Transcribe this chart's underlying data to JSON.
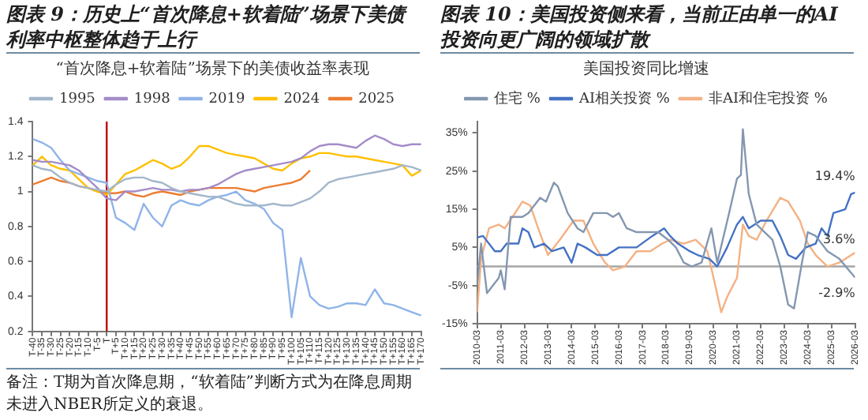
{
  "chart_data": [
    {
      "type": "line",
      "title": "图表 9：历史上“首次降息+软着陆”场景下美债利率中枢整体趋于上行",
      "subtitle": "“首次降息+软着陆”场景下的美债收益率表现",
      "legend": "top",
      "marker": "none",
      "line_style": "solid",
      "grid": false,
      "categories": [
        "T-40",
        "T-35",
        "T-30",
        "T-25",
        "T-20",
        "T-15",
        "T-10",
        "T-5",
        "T",
        "T+5",
        "T+10",
        "T+15",
        "T+20",
        "T+25",
        "T+30",
        "T+35",
        "T+40",
        "T+45",
        "T+50",
        "T+55",
        "T+60",
        "T+65",
        "T+70",
        "T+75",
        "T+80",
        "T+85",
        "T+90",
        "T+95",
        "T+100",
        "T+105",
        "T+110",
        "T+115",
        "T+120",
        "T+125",
        "T+130",
        "T+135",
        "T+140",
        "T+145",
        "T+150",
        "T+155",
        "T+160",
        "T+165",
        "T+170"
      ],
      "ylim": [
        0.2,
        1.4
      ],
      "yticks": [
        0.2,
        0.4,
        0.6,
        0.8,
        1,
        1.2,
        1.4
      ],
      "ref_lines": [
        {
          "axis": "x",
          "value": "T",
          "color": "#c00000"
        }
      ],
      "series": [
        {
          "name": "1995",
          "color": "#a3b7cb",
          "values": [
            1.15,
            1.13,
            1.12,
            1.08,
            1.05,
            1.03,
            1.02,
            1.01,
            1.0,
            1.04,
            1.07,
            1.08,
            1.08,
            1.06,
            1.05,
            1.02,
            1.0,
            0.99,
            0.98,
            0.97,
            0.97,
            0.95,
            0.93,
            0.92,
            0.92,
            0.92,
            0.93,
            0.92,
            0.92,
            0.94,
            0.96,
            1.0,
            1.05,
            1.07,
            1.08,
            1.09,
            1.1,
            1.11,
            1.12,
            1.13,
            1.15,
            1.14,
            1.12
          ]
        },
        {
          "name": "1998",
          "color": "#a48cc8",
          "values": [
            1.18,
            1.17,
            1.17,
            1.16,
            1.15,
            1.12,
            1.07,
            1.02,
            0.96,
            0.95,
            1.0,
            1.0,
            1.01,
            1.02,
            1.01,
            1.01,
            1.0,
            1.01,
            1.01,
            1.02,
            1.04,
            1.07,
            1.1,
            1.12,
            1.13,
            1.14,
            1.15,
            1.16,
            1.17,
            1.19,
            1.23,
            1.26,
            1.27,
            1.27,
            1.26,
            1.25,
            1.29,
            1.32,
            1.3,
            1.27,
            1.26,
            1.27,
            1.27
          ]
        },
        {
          "name": "2019",
          "color": "#8fb4e8",
          "values": [
            1.3,
            1.28,
            1.25,
            1.18,
            1.12,
            1.1,
            1.08,
            1.06,
            1.05,
            0.85,
            0.82,
            0.78,
            0.93,
            0.85,
            0.8,
            0.92,
            0.95,
            0.93,
            0.92,
            0.95,
            0.97,
            0.98,
            1.0,
            0.95,
            0.93,
            0.9,
            0.82,
            0.78,
            0.28,
            0.62,
            0.4,
            0.35,
            0.33,
            0.34,
            0.36,
            0.36,
            0.35,
            0.44,
            0.36,
            0.35,
            0.33,
            0.31,
            0.29
          ]
        },
        {
          "name": "2024",
          "color": "#ffc000",
          "values": [
            1.15,
            1.2,
            1.15,
            1.13,
            1.12,
            1.07,
            1.02,
            1.0,
            0.98,
            1.04,
            1.1,
            1.12,
            1.15,
            1.18,
            1.16,
            1.13,
            1.15,
            1.2,
            1.26,
            1.26,
            1.24,
            1.22,
            1.21,
            1.2,
            1.19,
            1.16,
            1.13,
            1.12,
            1.16,
            1.19,
            1.2,
            1.22,
            1.22,
            1.21,
            1.2,
            1.2,
            1.19,
            1.18,
            1.17,
            1.16,
            1.15,
            1.09,
            1.12
          ]
        },
        {
          "name": "2025",
          "color": "#ed7d31",
          "values": [
            1.04,
            1.06,
            1.08,
            1.06,
            1.05,
            1.03,
            1.02,
            1.0,
            0.99,
            0.99,
            1.0,
            0.98,
            0.97,
            0.99,
            1.0,
            0.99,
            0.98,
            1.0,
            1.01,
            1.02,
            1.02,
            1.02,
            1.02,
            1.01,
            1.0,
            1.02,
            1.03,
            1.04,
            1.05,
            1.07,
            1.12,
            null,
            null,
            null,
            null,
            null,
            null,
            null,
            null,
            null,
            null,
            null,
            null
          ]
        }
      ],
      "annotations": [
        "备注：T期为首次降息期，“软着陆”判断方式为在降息周期未进入NBER所定义的衰退。"
      ]
    },
    {
      "type": "line",
      "title": "图表 10：美国投资侧来看，当前正由单一的AI投资向更广阔的领域扩散",
      "subtitle": "美国投资同比增速",
      "legend": "top",
      "marker": "none",
      "line_style": "solid",
      "grid": false,
      "xlim": [
        "2010-03",
        "2026-03"
      ],
      "xticks": [
        "2010-03",
        "2011-03",
        "2012-03",
        "2013-03",
        "2014-03",
        "2015-03",
        "2016-03",
        "2017-03",
        "2018-03",
        "2019-03",
        "2020-03",
        "2021-03",
        "2022-03",
        "2023-03",
        "2024-03",
        "2025-03",
        "2026-03"
      ],
      "ylim": [
        -15,
        38
      ],
      "yticks": [
        {
          "value": -15,
          "label": "-15%"
        },
        {
          "value": -5,
          "label": "-5%"
        },
        {
          "value": 5,
          "label": "5%"
        },
        {
          "value": 15,
          "label": "15%"
        },
        {
          "value": 25,
          "label": "25%"
        },
        {
          "value": 35,
          "label": "35%"
        }
      ],
      "ref_lines": [
        {
          "axis": "y",
          "value": 0,
          "color": "#a6a6a6"
        }
      ],
      "series": [
        {
          "name": "住宅 %",
          "color": "#8497b0",
          "x": [
            "2010-03",
            "2010-05",
            "2010-08",
            "2011-02",
            "2011-03",
            "2011-05",
            "2011-08",
            "2012-02",
            "2012-05",
            "2012-11",
            "2013-02",
            "2013-06",
            "2013-08",
            "2014-01",
            "2014-06",
            "2014-09",
            "2015-02",
            "2015-07",
            "2015-09",
            "2015-12",
            "2016-03",
            "2016-07",
            "2016-12",
            "2017-11",
            "2018-04",
            "2018-08",
            "2018-12",
            "2019-04",
            "2019-09",
            "2020-02",
            "2020-05",
            "2020-11",
            "2021-03",
            "2021-05",
            "2021-06",
            "2021-09",
            "2022-01",
            "2022-09",
            "2023-01",
            "2023-05",
            "2023-08",
            "2023-12",
            "2024-03",
            "2024-07",
            "2025-01",
            "2025-07",
            "2026-03"
          ],
          "values": [
            -5,
            6,
            -7,
            -3,
            -1,
            -6,
            13,
            13,
            14,
            18,
            17,
            22,
            21,
            14,
            10,
            9,
            14,
            14,
            14,
            13,
            14,
            10,
            9,
            9,
            7,
            5,
            1,
            0,
            1,
            10,
            1,
            14,
            23,
            24,
            36,
            19,
            11,
            7,
            0,
            -10,
            -11,
            1,
            9,
            8,
            4,
            2,
            -2.9
          ]
        },
        {
          "name": "AI相关投资 %",
          "color": "#4472c4",
          "x": [
            "2010-03",
            "2010-06",
            "2010-12",
            "2011-03",
            "2011-06",
            "2011-12",
            "2012-02",
            "2012-05",
            "2012-08",
            "2013-01",
            "2013-05",
            "2013-11",
            "2014-03",
            "2014-06",
            "2014-10",
            "2015-04",
            "2015-09",
            "2016-03",
            "2016-12",
            "2017-08",
            "2018-02",
            "2018-05",
            "2018-09",
            "2019-03",
            "2019-07",
            "2020-01",
            "2020-05",
            "2020-10",
            "2021-03",
            "2021-06",
            "2021-09",
            "2022-03",
            "2022-09",
            "2023-01",
            "2023-05",
            "2023-09",
            "2024-02",
            "2024-07",
            "2024-10",
            "2025-01",
            "2025-04",
            "2025-10",
            "2026-01",
            "2026-03"
          ],
          "values": [
            7.6,
            8,
            4,
            4,
            6,
            6,
            10,
            9,
            5,
            6,
            4,
            5,
            1,
            6,
            5,
            3,
            3,
            5,
            5,
            8,
            10,
            8,
            6,
            4,
            3,
            2,
            0,
            5,
            11,
            13,
            10,
            12,
            12,
            8,
            3,
            2,
            5,
            6,
            10,
            8,
            14,
            15,
            19,
            19.4
          ]
        },
        {
          "name": "非AI和住宅投资 %",
          "color": "#f4b183",
          "x": [
            "2010-03",
            "2010-05",
            "2010-09",
            "2011-02",
            "2011-05",
            "2011-09",
            "2012-02",
            "2012-06",
            "2012-10",
            "2013-03",
            "2013-09",
            "2014-04",
            "2014-09",
            "2015-02",
            "2015-08",
            "2015-12",
            "2016-06",
            "2016-12",
            "2017-07",
            "2018-01",
            "2018-05",
            "2018-12",
            "2019-06",
            "2019-12",
            "2020-04",
            "2020-07",
            "2020-10",
            "2021-03",
            "2021-06",
            "2021-09",
            "2022-01",
            "2022-06",
            "2023-01",
            "2023-05",
            "2023-11",
            "2024-03",
            "2024-07",
            "2025-01",
            "2025-07",
            "2026-03"
          ],
          "values": [
            -12,
            2,
            10,
            11,
            10,
            13,
            17,
            16,
            10,
            3,
            7,
            12,
            12,
            6,
            1,
            -1,
            0,
            4,
            4,
            6,
            7,
            6,
            7,
            4,
            -5,
            -12,
            -8,
            -3,
            11,
            8,
            7,
            12,
            18,
            17,
            12,
            6,
            3,
            0,
            1,
            3.6
          ]
        }
      ],
      "annotations": [
        {
          "text": "19.4%",
          "x": "2026-03",
          "y": 19.4
        },
        {
          "text": "3.6%",
          "x": "2026-03",
          "y": 3.6
        },
        {
          "text": "-2.9%",
          "x": "2026-03",
          "y": -2.9
        }
      ]
    }
  ]
}
